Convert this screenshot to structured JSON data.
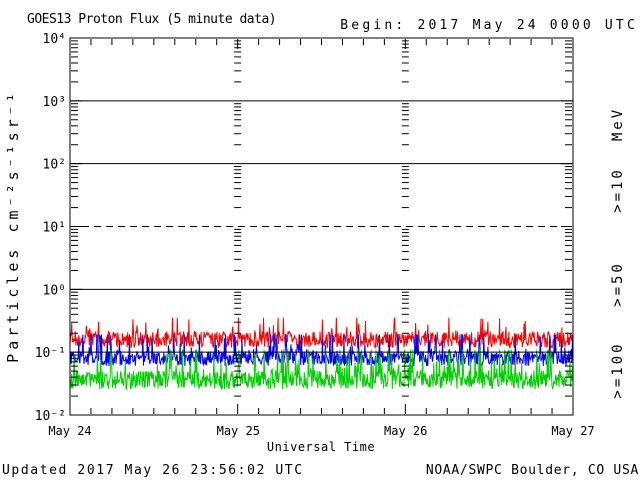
{
  "header": {
    "title": "GOES13 Proton Flux (5 minute data)",
    "begin_label": "Begin: 2017 May 24 0000 UTC"
  },
  "footer": {
    "updated": "Updated 2017 May 26 23:56:02 UTC",
    "source": "NOAA/SWPC Boulder, CO USA"
  },
  "axes": {
    "y_title": "Particles cm⁻²s⁻¹sr⁻¹",
    "x_title": "Universal Time",
    "y_tick_labels": [
      "10⁴",
      "10³",
      "10²",
      "10¹",
      "10⁰",
      "10⁻¹",
      "10⁻²"
    ],
    "x_tick_labels": [
      "May 24",
      "May 25",
      "May 26",
      "May 27"
    ],
    "right_axis_unit": "MeV"
  },
  "chart_data": {
    "type": "line",
    "title": "GOES13 Proton Flux (5 minute data)",
    "xlabel": "Universal Time",
    "ylabel": "Particles cm⁻²s⁻¹sr⁻¹",
    "x_start": "2017 May 24 0000 UTC",
    "x_end": "2017 May 27 0000 UTC",
    "x_total_hours": 72,
    "x_tick_hours": 3,
    "cadence_minutes": 5,
    "points_per_series": 864,
    "y_scale": "log10",
    "ylim_log10": [
      -2,
      4
    ],
    "grid_on": true,
    "gridlines": [
      {
        "level": 3,
        "style": "solid"
      },
      {
        "level": 2,
        "style": "solid"
      },
      {
        "level": 1,
        "style": "dashed"
      },
      {
        "level": 0,
        "style": "solid"
      },
      {
        "level": -1,
        "style": "solid"
      }
    ],
    "noise_seed": 20170524,
    "series": [
      {
        "label": ">=10",
        "unit": "MeV",
        "color": "#FF0000",
        "typical_flux": 0.15,
        "approx_flux_range": [
          0.1,
          0.35
        ],
        "log10_mean": -0.8,
        "log10_spread": 0.13,
        "spike_prob": 0.12,
        "spike_log10_max": 0.3,
        "log10_floor": -1.02,
        "log10_cap": -0.45
      },
      {
        "label": ">=50",
        "unit": "MeV",
        "color": "#0000FF",
        "typical_flux": 0.08,
        "approx_flux_range": [
          0.05,
          0.19
        ],
        "log10_mean": -1.1,
        "log10_spread": 0.12,
        "spike_prob": 0.18,
        "spike_log10_max": 0.42,
        "log10_floor": -1.34,
        "log10_cap": -0.72
      },
      {
        "label": ">=100",
        "unit": "MeV",
        "color": "#00D000",
        "typical_flux": 0.04,
        "approx_flux_range": [
          0.022,
          0.11
        ],
        "log10_mean": -1.44,
        "log10_spread": 0.15,
        "spike_prob": 0.22,
        "spike_log10_max": 0.52,
        "log10_floor": -1.66,
        "log10_cap": -0.96
      }
    ]
  }
}
